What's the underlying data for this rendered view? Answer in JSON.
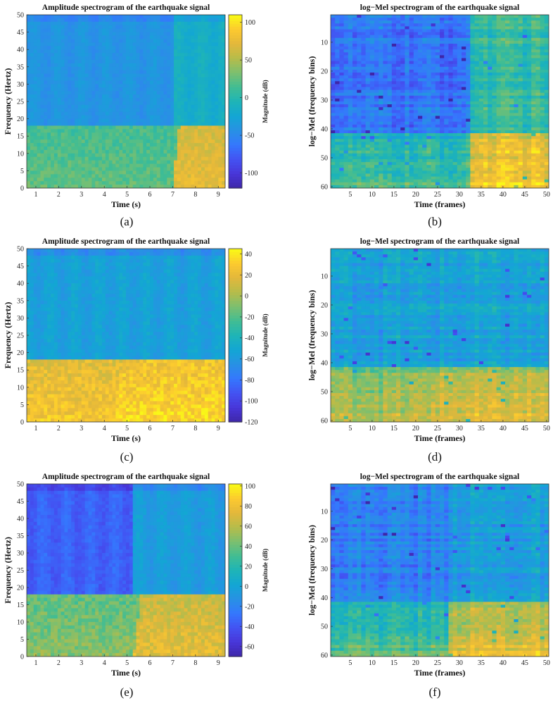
{
  "figure": {
    "colormap": [
      "#3e26a8",
      "#4836d8",
      "#4352f2",
      "#3577fd",
      "#2891e4",
      "#13a6d4",
      "#1eb4b7",
      "#41bd93",
      "#7cbf6f",
      "#b6bc4a",
      "#e3b73b",
      "#fcca2f",
      "#f9fb15"
    ]
  },
  "chart_data": [
    {
      "id": "a",
      "type": "heatmap",
      "variant": "amplitude",
      "title": "Amplitude spectrogram of the earthquake signal",
      "xlabel": "Time (s)",
      "ylabel": "Frequency (Hertz)",
      "xlim": [
        0.6,
        9.3
      ],
      "ylim": [
        0,
        50
      ],
      "xticks": [
        1,
        2,
        3,
        4,
        5,
        6,
        7,
        8,
        9
      ],
      "yticks": [
        0,
        5,
        10,
        15,
        20,
        25,
        30,
        35,
        40,
        45,
        50
      ],
      "colorbar": {
        "label": "Magnitude (dB)",
        "clim": [
          -120,
          110
        ],
        "ticks": [
          -100,
          -50,
          0,
          50,
          100
        ]
      },
      "caption": "(a)",
      "bands": {
        "split_hz": 18,
        "onset_s": 7.0,
        "low_pre_db": 25,
        "low_post_db": 75,
        "high_pre_db": -40,
        "high_post_db": -15
      }
    },
    {
      "id": "b",
      "type": "heatmap",
      "variant": "mel",
      "title": "log−Mel spectrogram of the earthquake signal",
      "xlabel": "Time (frames)",
      "ylabel": "log−Mel (frequency bins)",
      "xlim": [
        0.5,
        50.5
      ],
      "ylim": [
        0.5,
        60.5
      ],
      "y_reversed": true,
      "xticks": [
        5,
        10,
        15,
        20,
        25,
        30,
        35,
        40,
        45,
        50
      ],
      "yticks": [
        10,
        20,
        30,
        40,
        50,
        60
      ],
      "frames": 50,
      "bins": 60,
      "caption": "(b)",
      "bands": {
        "split_bin": 42,
        "onset_frame": 33,
        "low_pre": 0.6,
        "low_post": 0.92,
        "high_pre": 0.25,
        "high_post": 0.55
      }
    },
    {
      "id": "c",
      "type": "heatmap",
      "variant": "amplitude",
      "title": "Amplitude spectrogram of the earthquake signal",
      "xlabel": "Time (s)",
      "ylabel": "Frequency (Hertz)",
      "xlim": [
        0.6,
        9.3
      ],
      "ylim": [
        0,
        50
      ],
      "xticks": [
        1,
        2,
        3,
        4,
        5,
        6,
        7,
        8,
        9
      ],
      "yticks": [
        0,
        5,
        10,
        15,
        20,
        25,
        30,
        35,
        40,
        45,
        50
      ],
      "colorbar": {
        "label": "Magnitude (dB)",
        "clim": [
          -120,
          45
        ],
        "ticks": [
          -120,
          -100,
          -80,
          -60,
          -40,
          -20,
          0,
          20,
          40
        ]
      },
      "caption": "(c)",
      "bands": {
        "split_hz": 18,
        "onset_s": 4.5,
        "low_pre_db": 28,
        "low_post_db": 35,
        "high_pre_db": -55,
        "high_post_db": -55
      }
    },
    {
      "id": "d",
      "type": "heatmap",
      "variant": "mel",
      "title": "log−Mel spectrogram of the earthquake signal",
      "xlabel": "Time (frames)",
      "ylabel": "log−Mel (frequency bins)",
      "xlim": [
        0.5,
        50.5
      ],
      "ylim": [
        0.5,
        60.5
      ],
      "y_reversed": true,
      "xticks": [
        5,
        10,
        15,
        20,
        25,
        30,
        35,
        40,
        45,
        50
      ],
      "yticks": [
        10,
        20,
        30,
        40,
        50,
        60
      ],
      "frames": 50,
      "bins": 60,
      "caption": "(d)",
      "bands": {
        "split_bin": 42,
        "onset_frame": 24,
        "low_pre": 0.78,
        "low_post": 0.84,
        "high_pre": 0.4,
        "high_post": 0.4
      }
    },
    {
      "id": "e",
      "type": "heatmap",
      "variant": "amplitude",
      "title": "Amplitude spectrogram of the earthquake signal",
      "xlabel": "Time (s)",
      "ylabel": "Frequency (Hertz)",
      "xlim": [
        0.6,
        9.3
      ],
      "ylim": [
        0,
        50
      ],
      "xticks": [
        1,
        2,
        3,
        4,
        5,
        6,
        7,
        8,
        9
      ],
      "yticks": [
        0,
        5,
        10,
        15,
        20,
        25,
        30,
        35,
        40,
        45,
        50
      ],
      "colorbar": {
        "label": "Magnitude (dB)",
        "clim": [
          -70,
          102
        ],
        "ticks": [
          -60,
          -40,
          -20,
          0,
          20,
          40,
          60,
          80,
          100
        ]
      },
      "caption": "(e)",
      "bands": {
        "split_hz": 18,
        "onset_s": 5.3,
        "low_pre_db": 48,
        "low_post_db": 75,
        "high_pre_db": -35,
        "high_post_db": -5
      }
    },
    {
      "id": "f",
      "type": "heatmap",
      "variant": "mel",
      "title": "log−Mel spectrogram of the earthquake signal",
      "xlabel": "Time (frames)",
      "ylabel": "log−Mel (frequency bins)",
      "xlim": [
        0.5,
        50.5
      ],
      "ylim": [
        0.5,
        60.5
      ],
      "y_reversed": true,
      "xticks": [
        5,
        10,
        15,
        20,
        25,
        30,
        35,
        40,
        45,
        50
      ],
      "yticks": [
        10,
        20,
        30,
        40,
        50,
        60
      ],
      "frames": 50,
      "bins": 60,
      "caption": "(f)",
      "bands": {
        "split_bin": 42,
        "onset_frame": 28,
        "low_pre": 0.62,
        "low_post": 0.85,
        "high_pre": 0.28,
        "high_post": 0.38
      }
    }
  ]
}
